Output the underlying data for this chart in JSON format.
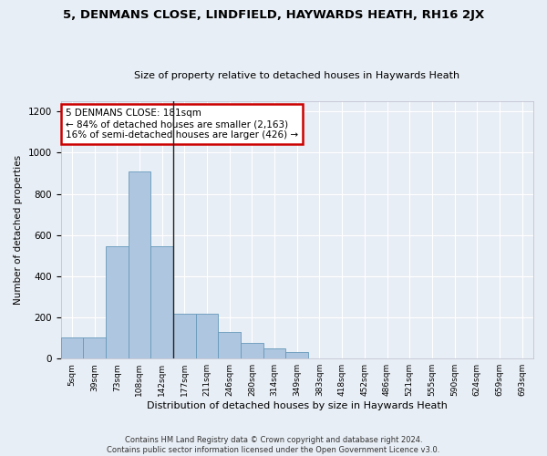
{
  "title": "5, DENMANS CLOSE, LINDFIELD, HAYWARDS HEATH, RH16 2JX",
  "subtitle": "Size of property relative to detached houses in Haywards Heath",
  "xlabel": "Distribution of detached houses by size in Haywards Heath",
  "ylabel": "Number of detached properties",
  "categories": [
    "5sqm",
    "39sqm",
    "73sqm",
    "108sqm",
    "142sqm",
    "177sqm",
    "211sqm",
    "246sqm",
    "280sqm",
    "314sqm",
    "349sqm",
    "383sqm",
    "418sqm",
    "452sqm",
    "486sqm",
    "521sqm",
    "555sqm",
    "590sqm",
    "624sqm",
    "659sqm",
    "693sqm"
  ],
  "values": [
    105,
    105,
    545,
    910,
    545,
    220,
    220,
    130,
    75,
    50,
    30,
    0,
    0,
    0,
    0,
    0,
    0,
    0,
    0,
    0,
    0
  ],
  "bar_color": "#aec6df",
  "bar_edge_color": "#6699bb",
  "property_line_index": 4,
  "annotation_text": "5 DENMANS CLOSE: 181sqm\n← 84% of detached houses are smaller (2,163)\n16% of semi-detached houses are larger (426) →",
  "annotation_box_facecolor": "#ffffff",
  "annotation_box_edgecolor": "#cc0000",
  "ylim": [
    0,
    1250
  ],
  "yticks": [
    0,
    200,
    400,
    600,
    800,
    1000,
    1200
  ],
  "footer_line1": "Contains HM Land Registry data © Crown copyright and database right 2024.",
  "footer_line2": "Contains public sector information licensed under the Open Government Licence v3.0.",
  "bg_color": "#e8eef5",
  "grid_color": "#ffffff"
}
